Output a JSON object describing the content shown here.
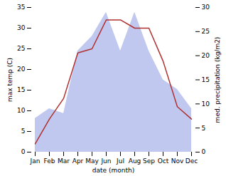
{
  "chart_data": {
    "type": "line",
    "categories": [
      "Jan",
      "Feb",
      "Mar",
      "Apr",
      "May",
      "Jun",
      "Jul",
      "Aug",
      "Sep",
      "Oct",
      "Nov",
      "Dec"
    ],
    "xlabel": "date (month)",
    "ylabel": "max temp (C)",
    "y2label": "med. precipitation (kg/m2)",
    "series": [
      {
        "type": "area",
        "axis": "y2",
        "color": "#c0c8f0",
        "values": [
          7,
          9,
          8,
          21,
          24,
          29,
          21,
          29,
          21,
          15,
          13,
          9
        ]
      },
      {
        "type": "line",
        "color": "#b03030",
        "values": [
          2,
          8,
          13,
          24,
          25,
          32,
          32,
          30,
          30,
          22,
          11,
          8
        ]
      }
    ],
    "ylim": [
      0,
      35
    ],
    "yticks": [
      0,
      5,
      10,
      15,
      20,
      25,
      30,
      35
    ],
    "y2lim": [
      0,
      30
    ],
    "y2ticks": [
      0,
      5,
      10,
      15,
      20,
      25,
      30
    ],
    "grid": false
  }
}
